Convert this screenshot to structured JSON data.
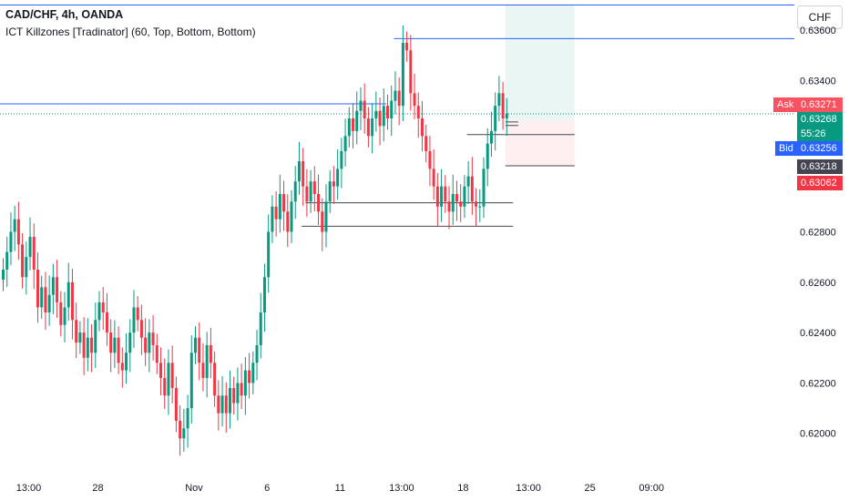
{
  "header": {
    "title": "CAD/CHF, 4h, OANDA",
    "indicator": "ICT Killzones [Tradinator] (60, Top, Bottom, Bottom)",
    "currency": "CHF"
  },
  "price_tags": {
    "ask_label": "Ask",
    "ask": "0.63271",
    "last": "0.63268",
    "countdown": "55:26",
    "bid_label": "Bid",
    "bid": "0.63256",
    "level1": "0.63218",
    "level2": "0.63062"
  },
  "colors": {
    "up": "#089981",
    "down": "#f23645",
    "line_blue": "#2962ff",
    "grid_text": "#131722",
    "ask_bg": "#f7525f",
    "bid_bg": "#2962ff",
    "last_bg": "#089981",
    "level1_bg": "#434651",
    "level2_bg": "#f23645"
  },
  "chart_data": {
    "type": "candlestick",
    "ylim": [
      0.6184,
      0.6372
    ],
    "y_ticks": [
      0.62,
      0.622,
      0.624,
      0.626,
      0.628,
      0.632,
      0.634,
      0.636
    ],
    "y_tick_labels": [
      "0.62000",
      "0.62200",
      "0.62400",
      "0.62600",
      "0.62800",
      "0.63200",
      "0.63400",
      "0.63600"
    ],
    "x_tick_labels": [
      "13:00",
      "28",
      "Nov",
      "6",
      "11",
      "13:00",
      "18",
      "13:00",
      "25",
      "09:00"
    ],
    "x_tick_bar_index": [
      7,
      25,
      50,
      69,
      88,
      104,
      120,
      137,
      153,
      169
    ],
    "candles_close": [
      0.6265,
      0.6272,
      0.628,
      0.6285,
      0.6275,
      0.6262,
      0.627,
      0.6278,
      0.6265,
      0.625,
      0.6258,
      0.6248,
      0.6255,
      0.6262,
      0.6252,
      0.6243,
      0.625,
      0.626,
      0.6245,
      0.6236,
      0.624,
      0.623,
      0.6238,
      0.6232,
      0.6245,
      0.6252,
      0.6248,
      0.624,
      0.6232,
      0.6238,
      0.6228,
      0.6225,
      0.6232,
      0.624,
      0.625,
      0.6245,
      0.6238,
      0.6232,
      0.624,
      0.6235,
      0.6228,
      0.6222,
      0.6215,
      0.6228,
      0.6218,
      0.6205,
      0.6198,
      0.6202,
      0.621,
      0.6232,
      0.6238,
      0.6228,
      0.6222,
      0.6235,
      0.6228,
      0.6215,
      0.6208,
      0.6215,
      0.6208,
      0.6218,
      0.6212,
      0.622,
      0.6215,
      0.6225,
      0.622,
      0.6228,
      0.6235,
      0.6248,
      0.6262,
      0.628,
      0.629,
      0.6285,
      0.6295,
      0.6288,
      0.628,
      0.6292,
      0.63,
      0.6308,
      0.6298,
      0.6292,
      0.63,
      0.6295,
      0.6288,
      0.628,
      0.6292,
      0.63,
      0.6298,
      0.6305,
      0.6312,
      0.6318,
      0.6325,
      0.632,
      0.6328,
      0.6332,
      0.6325,
      0.6318,
      0.6325,
      0.6328,
      0.6322,
      0.633,
      0.6325,
      0.6332,
      0.6336,
      0.633,
      0.6355,
      0.6352,
      0.6335,
      0.633,
      0.6325,
      0.6318,
      0.6312,
      0.6305,
      0.6298,
      0.629,
      0.6298,
      0.6292,
      0.6288,
      0.6295,
      0.6292,
      0.629,
      0.6298,
      0.6302,
      0.6292,
      0.629,
      0.629,
      0.6305,
      0.6315,
      0.632,
      0.633,
      0.6335,
      0.6325,
      0.6327
    ]
  }
}
